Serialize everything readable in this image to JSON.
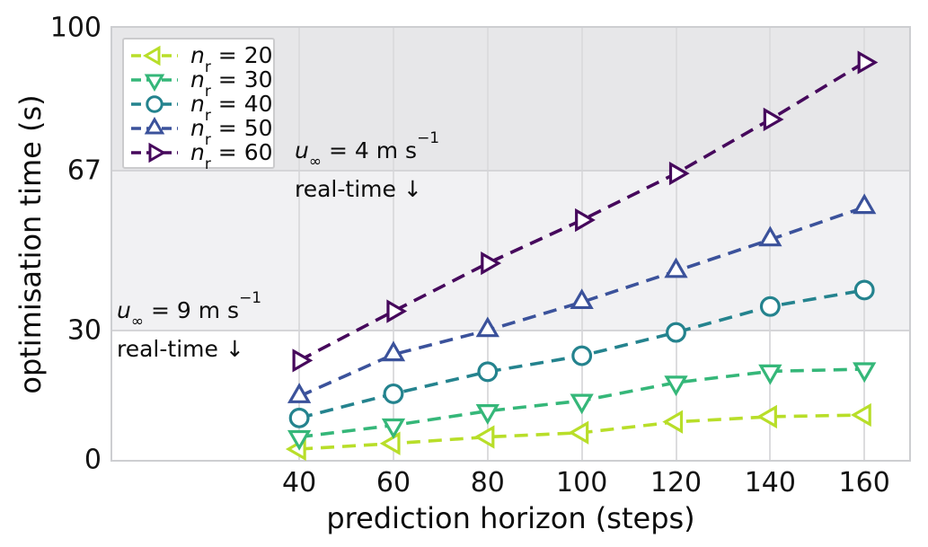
{
  "chart_data": {
    "type": "line",
    "title": "",
    "xlabel": "prediction horizon (steps)",
    "ylabel": "optimisation time (s)",
    "xlim": [
      0.3,
      169.5
    ],
    "ylim": [
      0,
      100
    ],
    "xticks": [
      40,
      60,
      80,
      100,
      120,
      140,
      160
    ],
    "yticks": [
      0,
      30,
      67,
      100
    ],
    "grid": "vertical-at-xticks",
    "line_style": "dashed",
    "legend_position": "upper-left",
    "x": [
      40,
      60,
      80,
      100,
      120,
      140,
      160
    ],
    "series": [
      {
        "id": "nr20",
        "name": "n_r = 20",
        "label": {
          "pre": "n",
          "sub": "r",
          "post": " = 20"
        },
        "marker": "triangle-left",
        "color": "#b8de29",
        "values": [
          2.5,
          3.8,
          5.3,
          6.3,
          8.8,
          10.0,
          10.4
        ]
      },
      {
        "id": "nr30",
        "name": "n_r = 30",
        "label": {
          "pre": "n",
          "sub": "r",
          "post": " = 30"
        },
        "marker": "triangle-down",
        "color": "#35b779",
        "values": [
          5.3,
          8.0,
          11.3,
          13.7,
          17.9,
          20.5,
          21.0
        ]
      },
      {
        "id": "nr40",
        "name": "n_r = 40",
        "label": {
          "pre": "n",
          "sub": "r",
          "post": " = 40"
        },
        "marker": "circle",
        "color": "#24838e",
        "values": [
          9.7,
          15.3,
          20.4,
          24.1,
          29.5,
          35.5,
          39.3
        ]
      },
      {
        "id": "nr50",
        "name": "n_r = 50",
        "label": {
          "pre": "n",
          "sub": "r",
          "post": " = 50"
        },
        "marker": "triangle-up",
        "color": "#3b529b",
        "values": [
          14.7,
          24.4,
          30.0,
          36.5,
          43.7,
          51.0,
          58.5
        ]
      },
      {
        "id": "nr60",
        "name": "n_r = 60",
        "label": {
          "pre": "n",
          "sub": "r",
          "post": " = 60"
        },
        "marker": "triangle-right",
        "color": "#46085c",
        "values": [
          23.0,
          34.4,
          45.5,
          55.5,
          66.3,
          78.8,
          92.0
        ]
      }
    ],
    "bands": [
      {
        "from": 67,
        "to": 100,
        "color": "#e7e7e9"
      },
      {
        "from": 30,
        "to": 67,
        "color": "#f1f1f3"
      },
      {
        "from": 0,
        "to": 30,
        "color": "#ffffff"
      }
    ],
    "threshold_lines": [
      30,
      67
    ],
    "annotations": [
      {
        "anchor_y": 67,
        "condition": {
          "pre": "u",
          "sub": "∞",
          "mid": " = 4 m s",
          "sup": "−1"
        },
        "below_text": "real-time ↓"
      },
      {
        "anchor_y": 30,
        "condition": {
          "pre": "u",
          "sub": "∞",
          "mid": " = 9 m s",
          "sup": "−1"
        },
        "below_text": "real-time ↓"
      }
    ]
  }
}
